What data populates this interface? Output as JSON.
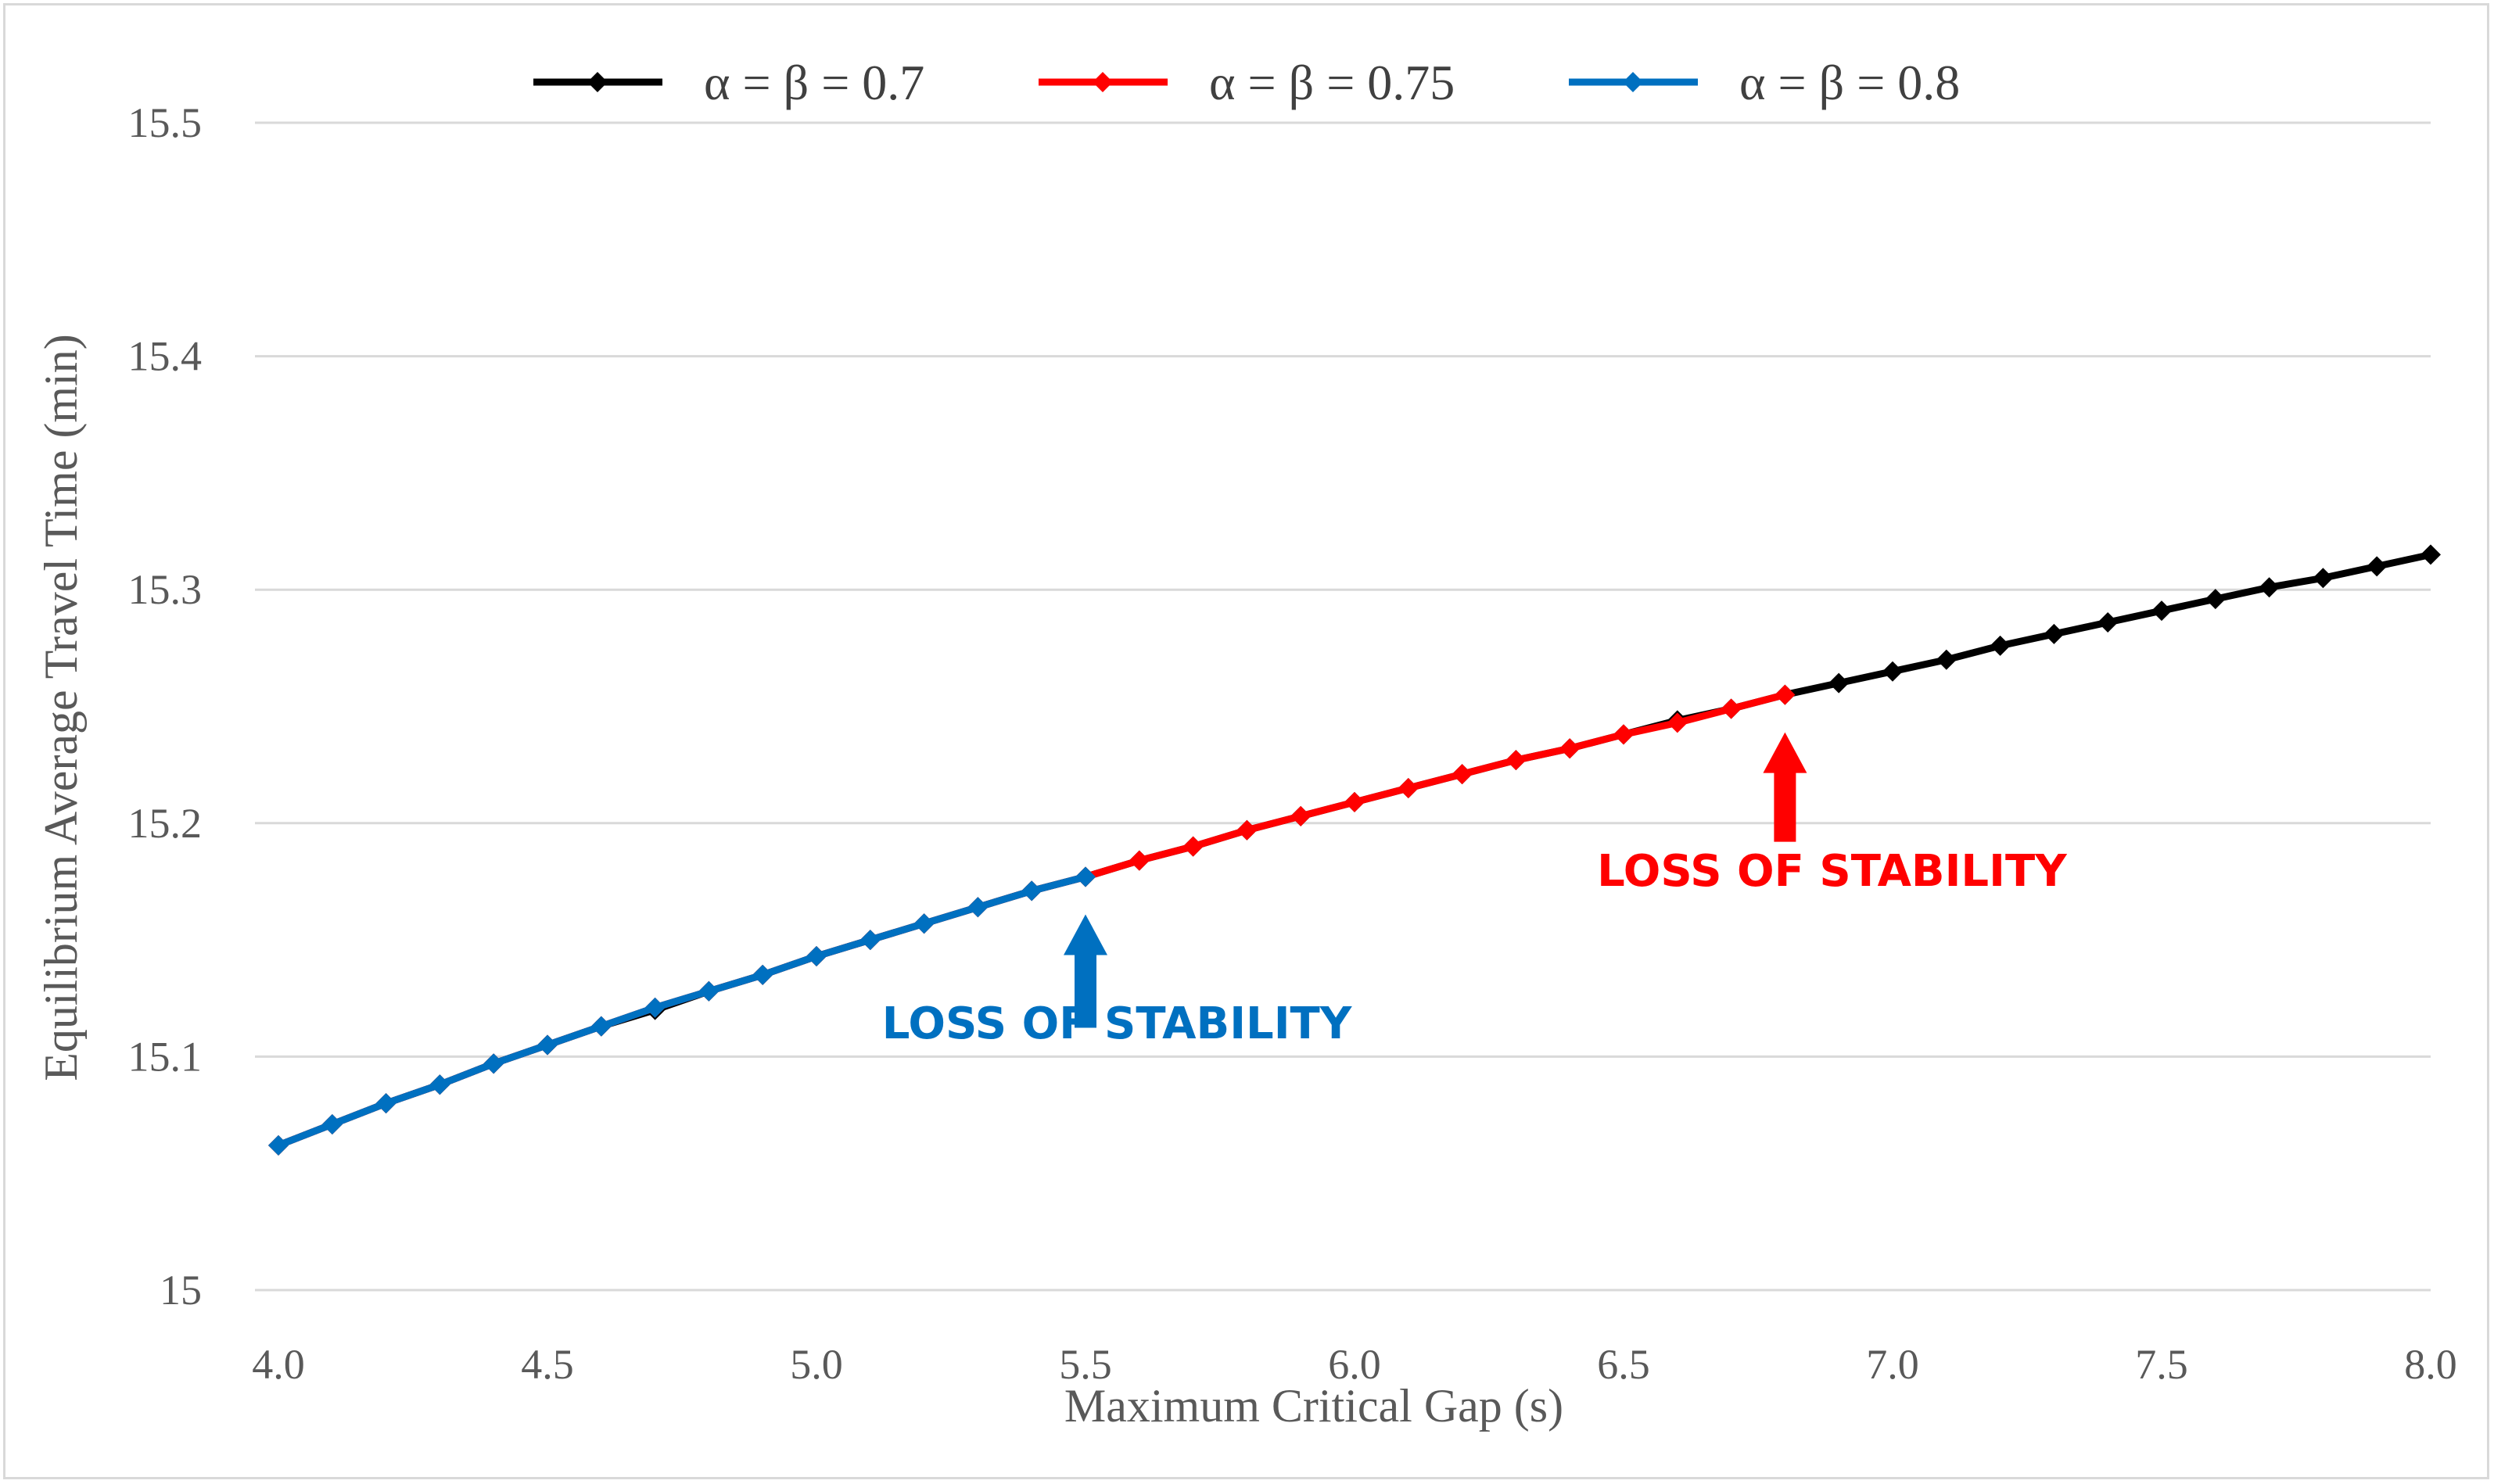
{
  "chart_data": {
    "type": "line",
    "title": "",
    "xlabel": "Maximum Critical Gap (s)",
    "ylabel": "Equilibrium Average Travel Time (min)",
    "xlim": [
      4.0,
      8.0
    ],
    "ylim": [
      15.0,
      15.5
    ],
    "x_ticks": [
      "4.0",
      "4.5",
      "5.0",
      "5.5",
      "6.0",
      "6.5",
      "7.0",
      "7.5",
      "8.0"
    ],
    "y_ticks": [
      "15",
      "15.1",
      "15.2",
      "15.3",
      "15.4",
      "15.5"
    ],
    "grid": "horizontal",
    "legend_position": "top-center",
    "series": [
      {
        "name": "α = β = 0.7",
        "color": "#000000",
        "x": [
          4.0,
          4.1,
          4.2,
          4.3,
          4.4,
          4.5,
          4.6,
          4.7,
          4.8,
          4.9,
          5.0,
          5.1,
          5.2,
          5.3,
          5.4,
          5.5,
          5.6,
          5.7,
          5.8,
          5.9,
          6.0,
          6.1,
          6.2,
          6.3,
          6.4,
          6.5,
          6.6,
          6.7,
          6.8,
          6.9,
          7.0,
          7.1,
          7.2,
          7.3,
          7.4,
          7.5,
          7.6,
          7.7,
          7.8,
          7.9,
          8.0
        ],
        "values": [
          15.062,
          15.071,
          15.08,
          15.088,
          15.097,
          15.105,
          15.113,
          15.12,
          15.128,
          15.135,
          15.143,
          15.15,
          15.157,
          15.164,
          15.171,
          15.177,
          15.184,
          15.19,
          15.197,
          15.203,
          15.209,
          15.215,
          15.221,
          15.227,
          15.232,
          15.238,
          15.244,
          15.249,
          15.255,
          15.26,
          15.265,
          15.27,
          15.276,
          15.281,
          15.286,
          15.291,
          15.296,
          15.301,
          15.305,
          15.31,
          15.315
        ]
      },
      {
        "name": "α = β = 0.75",
        "color": "#ff0000",
        "x": [
          4.0,
          4.1,
          4.2,
          4.3,
          4.4,
          4.5,
          4.6,
          4.7,
          4.8,
          4.9,
          5.0,
          5.1,
          5.2,
          5.3,
          5.4,
          5.5,
          5.6,
          5.7,
          5.8,
          5.9,
          6.0,
          6.1,
          6.2,
          6.3,
          6.4,
          6.5,
          6.6,
          6.7,
          6.8
        ],
        "values": [
          15.062,
          15.071,
          15.08,
          15.088,
          15.097,
          15.105,
          15.113,
          15.121,
          15.128,
          15.135,
          15.143,
          15.15,
          15.157,
          15.164,
          15.171,
          15.177,
          15.184,
          15.19,
          15.197,
          15.203,
          15.209,
          15.215,
          15.221,
          15.227,
          15.232,
          15.238,
          15.243,
          15.249,
          15.255
        ]
      },
      {
        "name": "α = β = 0.8",
        "color": "#0070c0",
        "x": [
          4.0,
          4.1,
          4.2,
          4.3,
          4.4,
          4.5,
          4.6,
          4.7,
          4.8,
          4.9,
          5.0,
          5.1,
          5.2,
          5.3,
          5.4,
          5.5
        ],
        "values": [
          15.062,
          15.071,
          15.08,
          15.088,
          15.097,
          15.105,
          15.113,
          15.121,
          15.128,
          15.135,
          15.143,
          15.15,
          15.157,
          15.164,
          15.171,
          15.177
        ]
      }
    ],
    "annotations": [
      {
        "text": "LOSS OF STABILITY",
        "color": "#0070c0",
        "x": 5.5,
        "y": 15.177
      },
      {
        "text": "LOSS OF STABILITY",
        "color": "#ff0000",
        "x": 6.8,
        "y": 15.255
      }
    ]
  }
}
